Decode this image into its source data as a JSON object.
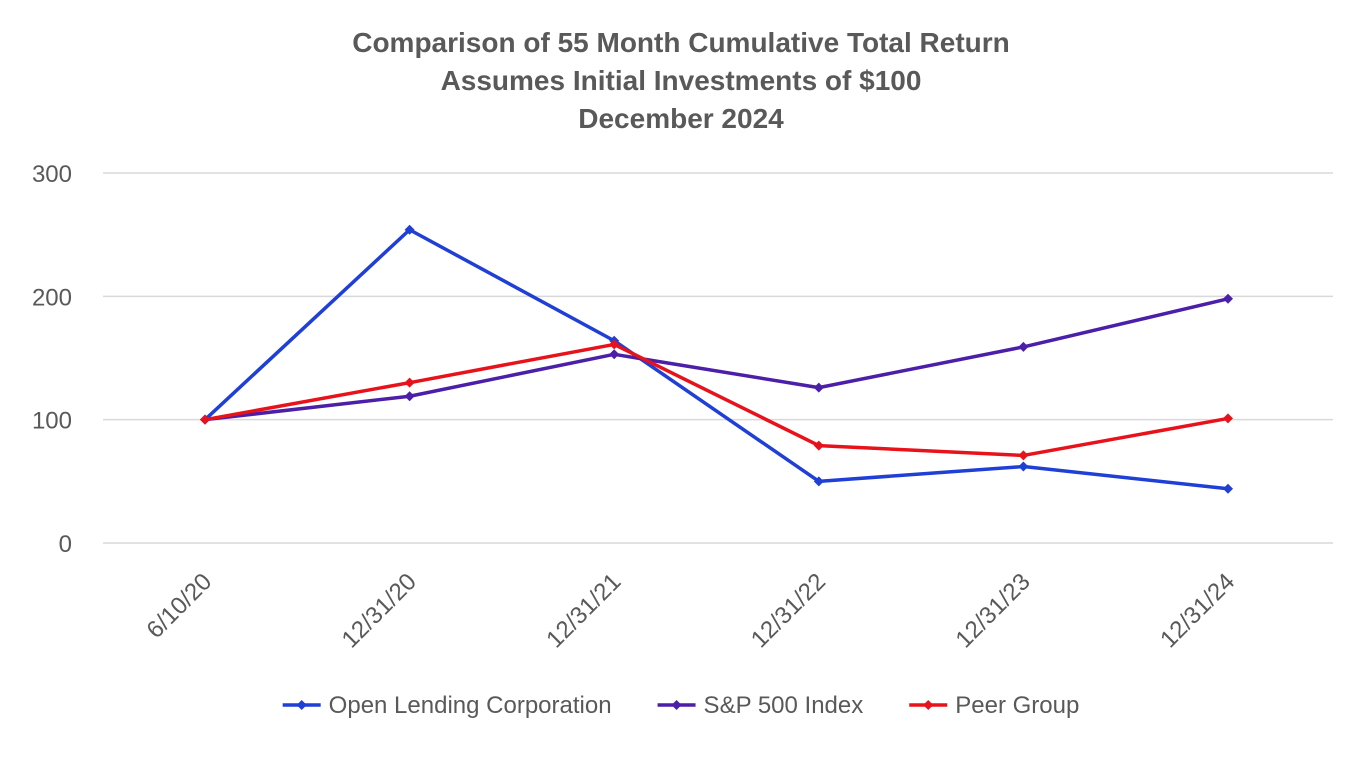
{
  "chart_data": {
    "type": "line",
    "title_lines": [
      "Comparison of 55 Month Cumulative Total Return",
      "Assumes Initial Investments of $100",
      "December 2024"
    ],
    "xlabel": "",
    "ylabel": "",
    "categories": [
      "6/10/20",
      "12/31/20",
      "12/31/21",
      "12/31/22",
      "12/31/23",
      "12/31/24"
    ],
    "ylim": [
      0,
      300
    ],
    "yticks": [
      0,
      100,
      200,
      300
    ],
    "grid": true,
    "legend_position": "bottom",
    "series": [
      {
        "name": "Open Lending Corporation",
        "color": "#1F3FD6",
        "values": [
          100,
          254,
          164,
          50,
          62,
          44
        ]
      },
      {
        "name": "S&P 500 Index",
        "color": "#4B1FA8",
        "values": [
          100,
          119,
          153,
          126,
          159,
          198
        ]
      },
      {
        "name": "Peer Group",
        "color": "#E8121B",
        "values": [
          100,
          130,
          161,
          79,
          71,
          101
        ]
      }
    ]
  }
}
